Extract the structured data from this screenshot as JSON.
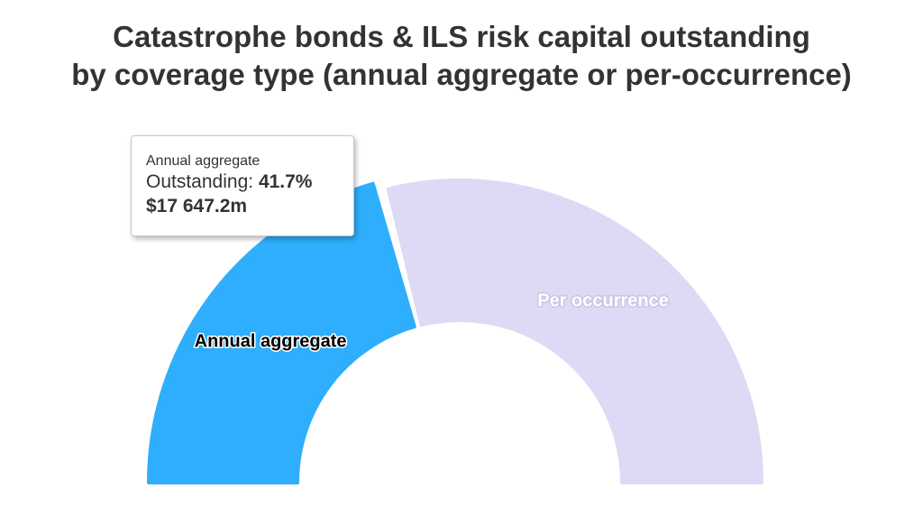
{
  "chart_data": {
    "type": "pie",
    "variant": "semi-donut",
    "title_lines": [
      "Catastrophe bonds & ILS risk capital outstanding",
      "by coverage type (annual aggregate or per-occurrence)"
    ],
    "series_name": "Outstanding",
    "slices": [
      {
        "name": "Annual aggregate",
        "percent": 41.7,
        "value_label": "$17 647.2m",
        "color": "#2eaefc",
        "label_color": "#000000",
        "label_outline": "#ffffff",
        "state": "hover"
      },
      {
        "name": "Per occurrence",
        "percent": 58.3,
        "color": "#dcdaf5",
        "label_color": "#ffffff",
        "label_outline": "#c9c6e6",
        "state": "inactive"
      }
    ],
    "tooltip": {
      "slice_name": "Annual aggregate",
      "series_label": "Outstanding:",
      "percent_text": "41.7%",
      "value_text": "$17 647.2m"
    }
  }
}
